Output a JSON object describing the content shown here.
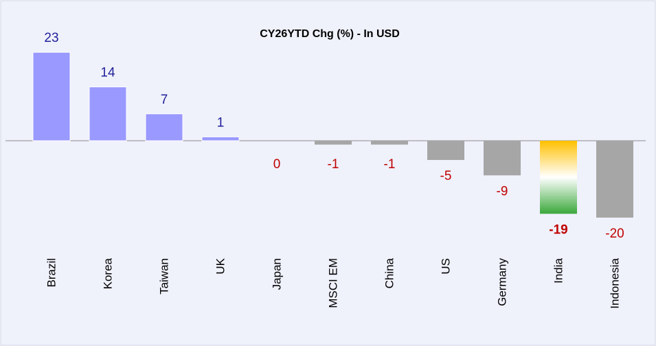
{
  "chart_data": {
    "type": "bar",
    "title": "CY26YTD Chg (%) - In USD",
    "categories": [
      "Brazil",
      "Korea",
      "Taiwan",
      "UK",
      "Japan",
      "MSCI EM",
      "China",
      "US",
      "Germany",
      "India",
      "Indonesia"
    ],
    "values": [
      23,
      14,
      7,
      1,
      0,
      -1,
      -1,
      -5,
      -9,
      -19,
      -20
    ],
    "bar_colors": [
      "#9999ff",
      "#9999ff",
      "#9999ff",
      "#9999ff",
      "#9999ff",
      "#a6a6a6",
      "#a6a6a6",
      "#a6a6a6",
      "#a6a6a6",
      [
        "#ffc000",
        "#ffffff",
        "#3aa83a"
      ],
      "#a6a6a6"
    ],
    "value_label_colors": [
      "#1f1f9a",
      "#1f1f9a",
      "#1f1f9a",
      "#1f1f9a",
      "#c00000",
      "#c00000",
      "#c00000",
      "#c00000",
      "#c00000",
      "#c00000",
      "#c00000"
    ],
    "value_label_bold": [
      false,
      false,
      false,
      false,
      false,
      false,
      false,
      false,
      false,
      true,
      false
    ]
  }
}
